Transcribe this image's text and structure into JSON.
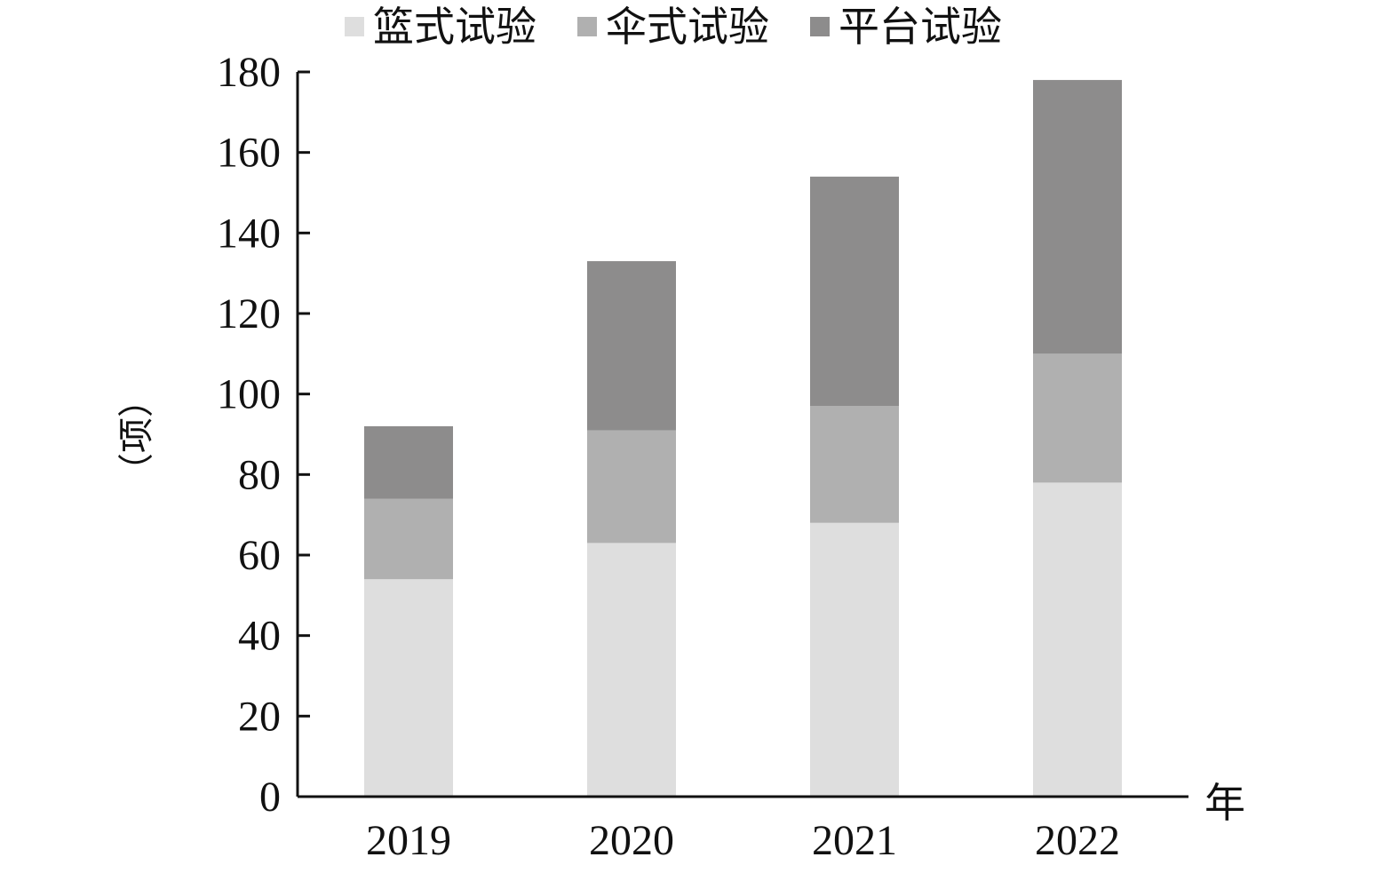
{
  "chart_data": {
    "type": "bar",
    "stacked": true,
    "categories": [
      "2019",
      "2020",
      "2021",
      "2022"
    ],
    "series": [
      {
        "name": "篮式试验",
        "values": [
          54,
          63,
          68,
          78
        ],
        "color": "#dedede"
      },
      {
        "name": "伞式试验",
        "values": [
          20,
          28,
          29,
          32
        ],
        "color": "#b0b0b0"
      },
      {
        "name": "平台试验",
        "values": [
          18,
          42,
          57,
          68
        ],
        "color": "#8d8c8c"
      }
    ],
    "ylabel": "（项）",
    "xunit": "年",
    "ylim": [
      0,
      180
    ],
    "yticks": [
      0,
      20,
      40,
      60,
      80,
      100,
      120,
      140,
      160,
      180
    ],
    "grid": false,
    "legend_position": "top"
  }
}
